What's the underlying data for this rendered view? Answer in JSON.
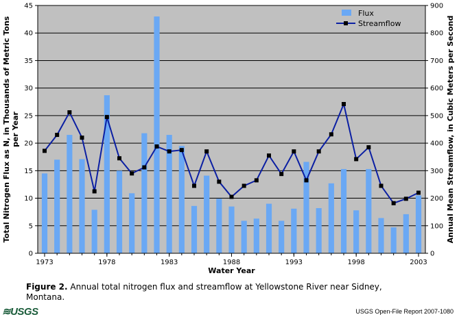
{
  "chart_data": {
    "type": "bar",
    "title": "",
    "xlabel": "Water Year",
    "ylabel": "Total Nitrogen Flux as N, in Thousands of Metric Tons per Year",
    "y2label": "Annual Mean Streamflow, in Cubic Meters per Second",
    "x": [
      1973,
      1974,
      1975,
      1976,
      1977,
      1978,
      1979,
      1980,
      1981,
      1982,
      1983,
      1984,
      1985,
      1986,
      1987,
      1988,
      1989,
      1990,
      1991,
      1992,
      1993,
      1994,
      1995,
      1996,
      1997,
      1998,
      1999,
      2000,
      2001,
      2002,
      2003
    ],
    "xticks": [
      1973,
      1978,
      1983,
      1988,
      1993,
      1998,
      2003
    ],
    "ylim": [
      0,
      45
    ],
    "yticks": [
      0,
      5,
      10,
      15,
      20,
      25,
      30,
      35,
      40,
      45
    ],
    "y2lim": [
      0,
      900
    ],
    "y2ticks": [
      0,
      100,
      200,
      300,
      400,
      500,
      600,
      700,
      800,
      900
    ],
    "grid": true,
    "legend_position": "top-right",
    "series": [
      {
        "name": "Flux",
        "type": "bar",
        "axis": "left",
        "color": "#6aa8f4",
        "values": [
          14.5,
          17.0,
          21.5,
          17.1,
          7.9,
          28.7,
          15.0,
          10.9,
          21.8,
          43.0,
          21.5,
          19.5,
          8.6,
          14.1,
          9.9,
          8.5,
          5.9,
          6.3,
          9.0,
          5.9,
          8.1,
          16.6,
          8.2,
          12.7,
          15.3,
          7.8,
          15.3,
          6.4,
          4.7,
          7.1,
          10.5
        ]
      },
      {
        "name": "Streamflow",
        "type": "line",
        "axis": "right",
        "color": "#0b1fa3",
        "values": [
          372,
          430,
          512,
          420,
          225,
          495,
          345,
          290,
          312,
          388,
          370,
          375,
          245,
          370,
          260,
          205,
          245,
          265,
          355,
          288,
          370,
          265,
          370,
          432,
          542,
          342,
          385,
          245,
          182,
          198,
          220
        ]
      }
    ]
  },
  "caption": {
    "label": "Figure 2.",
    "text": "Annual total nitrogen flux and streamflow at Yellowstone River near Sidney, Montana."
  },
  "footer": {
    "logo_text": "USGS",
    "report": "USGS Open-File Report 2007-1080"
  },
  "colors": {
    "plot_bg": "#c0c0c0",
    "bar": "#6aa8f4",
    "line": "#0b1fa3",
    "marker": "#000000"
  }
}
